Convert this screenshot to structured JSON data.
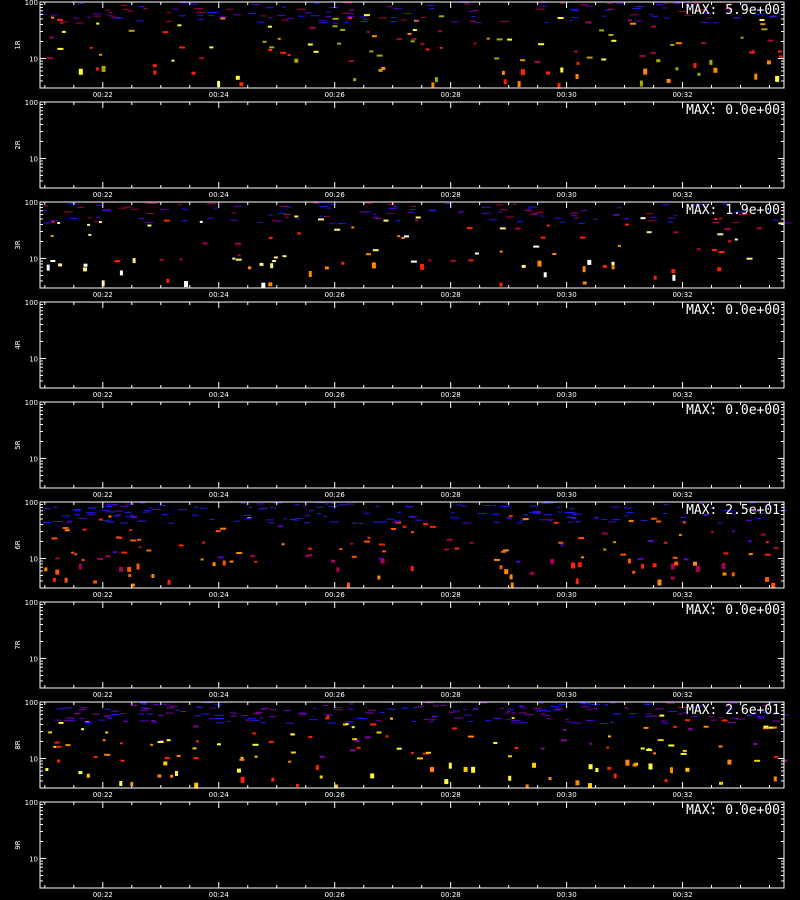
{
  "chart_data": [
    {
      "type": "heatmap",
      "ylabel": "1R",
      "max_label": "MAX: 5.9e+00",
      "y_ticks": [
        "100",
        "10"
      ],
      "x_ticks": [
        "00:22",
        "00:24",
        "00:26",
        "00:28",
        "00:30",
        "00:32"
      ],
      "ylim": [
        3,
        100
      ],
      "y_scale": "log",
      "xlim": [
        "00:20:55",
        "00:33:45"
      ],
      "has_data": true,
      "palette": [
        "#1a1aff",
        "#5500cc",
        "#aa0055",
        "#ff2200",
        "#ff8800",
        "#aaaa00",
        "#ffff33"
      ],
      "seed": 11,
      "density": 260
    },
    {
      "type": "heatmap",
      "ylabel": "2R",
      "max_label": "MAX: 0.0e+00",
      "y_ticks": [
        "100",
        "10"
      ],
      "x_ticks": [
        "00:22",
        "00:24",
        "00:26",
        "00:28",
        "00:30",
        "00:32"
      ],
      "ylim": [
        3,
        100
      ],
      "y_scale": "log",
      "xlim": [
        "00:20:55",
        "00:33:45"
      ],
      "has_data": false
    },
    {
      "type": "heatmap",
      "ylabel": "3R",
      "max_label": "MAX: 1.9e+00",
      "y_ticks": [
        "100",
        "10"
      ],
      "x_ticks": [
        "00:22",
        "00:24",
        "00:26",
        "00:28",
        "00:30",
        "00:32"
      ],
      "ylim": [
        3,
        100
      ],
      "y_scale": "log",
      "xlim": [
        "00:20:55",
        "00:33:45"
      ],
      "has_data": true,
      "palette": [
        "#1a1aff",
        "#5500cc",
        "#aa0055",
        "#ff2200",
        "#ff8800",
        "#ffee88",
        "#ffffff"
      ],
      "seed": 23,
      "density": 220
    },
    {
      "type": "heatmap",
      "ylabel": "4R",
      "max_label": "MAX: 0.0e+00",
      "y_ticks": [
        "100",
        "10"
      ],
      "x_ticks": [
        "00:22",
        "00:24",
        "00:26",
        "00:28",
        "00:30",
        "00:32"
      ],
      "ylim": [
        3,
        100
      ],
      "y_scale": "log",
      "xlim": [
        "00:20:55",
        "00:33:45"
      ],
      "has_data": false
    },
    {
      "type": "heatmap",
      "ylabel": "5R",
      "max_label": "MAX: 0.0e+00",
      "y_ticks": [
        "100",
        "10"
      ],
      "x_ticks": [
        "00:22",
        "00:24",
        "00:26",
        "00:28",
        "00:30",
        "00:32"
      ],
      "ylim": [
        3,
        100
      ],
      "y_scale": "log",
      "xlim": [
        "00:20:55",
        "00:33:45"
      ],
      "has_data": false
    },
    {
      "type": "heatmap",
      "ylabel": "6R",
      "max_label": "MAX: 2.5e+01",
      "y_ticks": [
        "100",
        "10"
      ],
      "x_ticks": [
        "00:22",
        "00:24",
        "00:26",
        "00:28",
        "00:30",
        "00:32"
      ],
      "ylim": [
        3,
        100
      ],
      "y_scale": "log",
      "xlim": [
        "00:20:55",
        "00:33:45"
      ],
      "has_data": true,
      "palette": [
        "#1a1aff",
        "#2222dd",
        "#5500cc",
        "#aa0055",
        "#ff2200",
        "#ff5500",
        "#ff8800"
      ],
      "seed": 37,
      "density": 300
    },
    {
      "type": "heatmap",
      "ylabel": "7R",
      "max_label": "MAX: 0.0e+00",
      "y_ticks": [
        "100",
        "10"
      ],
      "x_ticks": [
        "00:22",
        "00:24",
        "00:26",
        "00:28",
        "00:30",
        "00:32"
      ],
      "ylim": [
        3,
        100
      ],
      "y_scale": "log",
      "xlim": [
        "00:20:55",
        "00:33:45"
      ],
      "has_data": false
    },
    {
      "type": "heatmap",
      "ylabel": "8R",
      "max_label": "MAX: 2.6e+01",
      "y_ticks": [
        "100",
        "10"
      ],
      "x_ticks": [
        "00:22",
        "00:24",
        "00:26",
        "00:28",
        "00:30",
        "00:32"
      ],
      "ylim": [
        3,
        100
      ],
      "y_scale": "log",
      "xlim": [
        "00:20:55",
        "00:33:45"
      ],
      "has_data": true,
      "palette": [
        "#1a1aff",
        "#5500cc",
        "#8800aa",
        "#ff2200",
        "#ff8800",
        "#ffcc00",
        "#ffff33"
      ],
      "seed": 53,
      "density": 330
    },
    {
      "type": "heatmap",
      "ylabel": "9R",
      "max_label": "MAX: 0.0e+00",
      "y_ticks": [
        "100",
        "10"
      ],
      "x_ticks": [
        "00:22",
        "00:24",
        "00:26",
        "00:28",
        "00:30",
        "00:32"
      ],
      "ylim": [
        3,
        100
      ],
      "y_scale": "log",
      "xlim": [
        "00:20:55",
        "00:33:45"
      ],
      "has_data": false
    }
  ]
}
